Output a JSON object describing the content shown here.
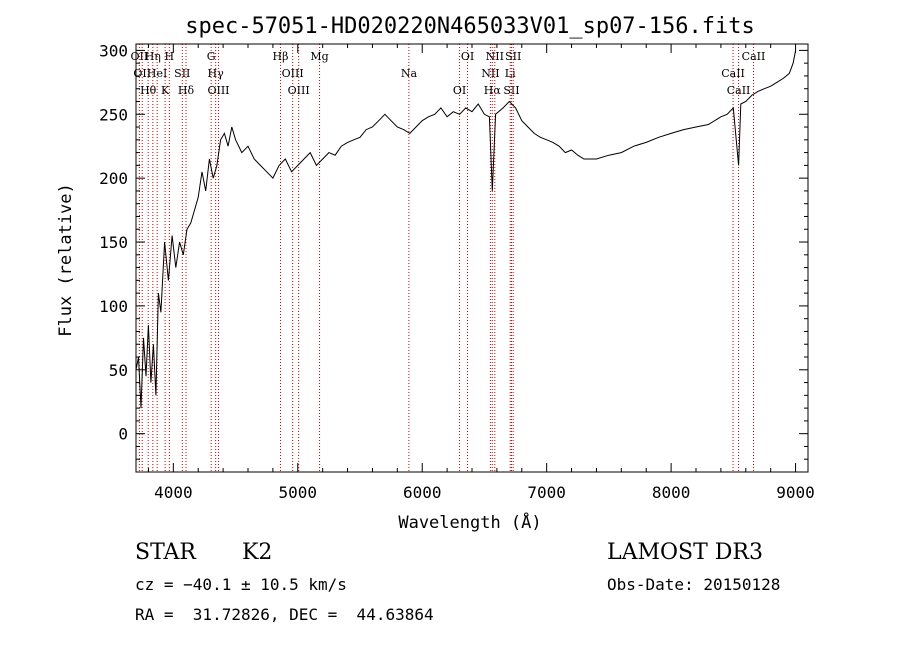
{
  "chart_data": {
    "type": "line",
    "title": "spec-57051-HD020220N465033V01_sp07-156.fits",
    "xlabel": "Wavelength (Å)",
    "ylabel": "Flux (relative)",
    "xlim": [
      3700,
      9100
    ],
    "ylim": [
      -30,
      305
    ],
    "xticks": [
      4000,
      5000,
      6000,
      7000,
      8000,
      9000
    ],
    "yticks": [
      0,
      50,
      100,
      150,
      200,
      250,
      300
    ],
    "grid": false,
    "line_color": "#000000",
    "marker_color": "#cc0000",
    "series": [
      {
        "x": [
          3700,
          3720,
          3740,
          3760,
          3780,
          3800,
          3820,
          3840,
          3860,
          3880,
          3900,
          3930,
          3960,
          3990,
          4020,
          4050,
          4080,
          4110,
          4140,
          4170,
          4200,
          4230,
          4260,
          4290,
          4320,
          4350,
          4380,
          4410,
          4440,
          4470,
          4500,
          4550,
          4600,
          4650,
          4700,
          4750,
          4800,
          4850,
          4900,
          4950,
          5000,
          5050,
          5100,
          5150,
          5200,
          5250,
          5300,
          5350,
          5400,
          5450,
          5500,
          5550,
          5600,
          5650,
          5700,
          5750,
          5800,
          5850,
          5900,
          5950,
          6000,
          6050,
          6100,
          6150,
          6200,
          6250,
          6300,
          6350,
          6400,
          6450,
          6500,
          6540,
          6563,
          6590,
          6650,
          6700,
          6750,
          6800,
          6850,
          6900,
          6950,
          7000,
          7050,
          7100,
          7150,
          7200,
          7250,
          7300,
          7400,
          7500,
          7600,
          7700,
          7800,
          7900,
          8000,
          8100,
          8200,
          8300,
          8400,
          8450,
          8500,
          8542,
          8560,
          8600,
          8650,
          8700,
          8750,
          8800,
          8850,
          8900,
          8950,
          8980,
          9000
        ],
        "y": [
          50,
          60,
          20,
          75,
          45,
          85,
          40,
          70,
          30,
          110,
          95,
          150,
          120,
          155,
          130,
          150,
          140,
          160,
          165,
          175,
          185,
          205,
          190,
          215,
          200,
          210,
          230,
          235,
          225,
          240,
          230,
          220,
          225,
          215,
          210,
          205,
          200,
          210,
          215,
          205,
          210,
          215,
          220,
          210,
          215,
          220,
          218,
          225,
          228,
          230,
          232,
          238,
          240,
          245,
          250,
          245,
          240,
          238,
          235,
          240,
          245,
          248,
          250,
          255,
          248,
          252,
          250,
          255,
          252,
          258,
          250,
          248,
          190,
          250,
          255,
          260,
          255,
          245,
          240,
          235,
          232,
          230,
          228,
          225,
          220,
          222,
          218,
          215,
          215,
          218,
          220,
          225,
          228,
          232,
          235,
          238,
          240,
          242,
          248,
          250,
          255,
          210,
          258,
          260,
          265,
          268,
          270,
          272,
          275,
          278,
          282,
          290,
          300
        ]
      }
    ],
    "lines": [
      {
        "x": 3727,
        "labels": [
          "OII"
        ]
      },
      {
        "x": 3750,
        "labels": [
          "OII"
        ]
      },
      {
        "x": 3798,
        "labels": [
          "Hθ"
        ]
      },
      {
        "x": 3835,
        "labels": [
          "Hη"
        ]
      },
      {
        "x": 3870,
        "labels": [
          "HeI"
        ]
      },
      {
        "x": 3934,
        "labels": [
          "K"
        ]
      },
      {
        "x": 3968,
        "labels": [
          "H"
        ]
      },
      {
        "x": 4072,
        "labels": [
          "SII"
        ]
      },
      {
        "x": 4102,
        "labels": [
          "Hδ"
        ]
      },
      {
        "x": 4304,
        "labels": [
          "G"
        ]
      },
      {
        "x": 4340,
        "labels": [
          "Hγ"
        ]
      },
      {
        "x": 4363,
        "labels": [
          "OIII"
        ]
      },
      {
        "x": 4861,
        "labels": [
          "Hβ"
        ]
      },
      {
        "x": 4959,
        "labels": [
          "OIII"
        ]
      },
      {
        "x": 5007,
        "labels": [
          "OIII"
        ]
      },
      {
        "x": 5175,
        "labels": [
          "Mg"
        ]
      },
      {
        "x": 5893,
        "labels": [
          "Na"
        ]
      },
      {
        "x": 6300,
        "labels": [
          "OI"
        ]
      },
      {
        "x": 6364,
        "labels": [
          "OI"
        ]
      },
      {
        "x": 6548,
        "labels": [
          "NII"
        ]
      },
      {
        "x": 6563,
        "labels": [
          "Hα"
        ]
      },
      {
        "x": 6583,
        "labels": [
          "NII"
        ]
      },
      {
        "x": 6707,
        "labels": [
          "Li"
        ]
      },
      {
        "x": 6717,
        "labels": [
          "SII"
        ]
      },
      {
        "x": 6731,
        "labels": [
          "SII"
        ]
      },
      {
        "x": 8498,
        "labels": [
          "CaII"
        ]
      },
      {
        "x": 8542,
        "labels": [
          "CaII"
        ]
      },
      {
        "x": 8662,
        "labels": [
          "CaII"
        ]
      }
    ]
  },
  "info": {
    "object_class": "STAR",
    "subclass": "K2",
    "survey": "LAMOST DR3",
    "cz": "cz = −40.1 ± 10.5 km/s",
    "obs_date": "Obs-Date: 20150128",
    "coords": "RA =  31.72826, DEC =  44.63864"
  }
}
